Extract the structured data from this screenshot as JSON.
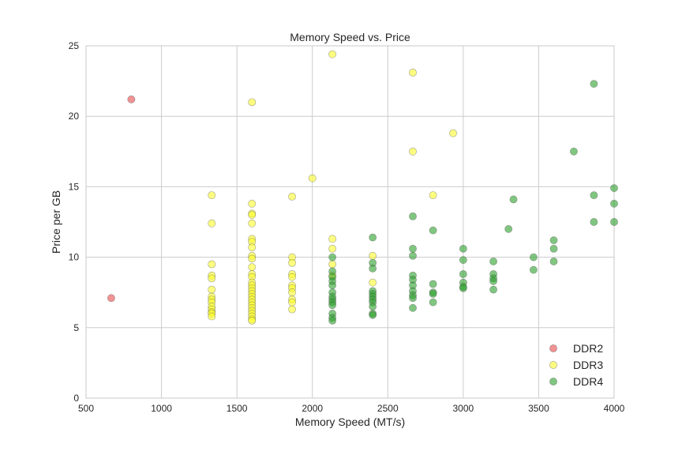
{
  "chart_data": {
    "type": "scatter",
    "title": "Memory Speed vs. Price",
    "xlabel": "Memory Speed (MT/s)",
    "ylabel": "Price per GB",
    "xlim": [
      500,
      4000
    ],
    "ylim": [
      0,
      25
    ],
    "xticks": [
      500,
      1000,
      1500,
      2000,
      2500,
      3000,
      3500,
      4000
    ],
    "yticks": [
      0,
      5,
      10,
      15,
      20,
      25
    ],
    "grid": true,
    "legend_position": "bottom-right",
    "series": [
      {
        "name": "DDR2",
        "color": "#e8494b",
        "points": [
          [
            667,
            7.1
          ],
          [
            800,
            21.2
          ]
        ]
      },
      {
        "name": "DDR3",
        "color": "#fcfc2c",
        "points": [
          [
            1333,
            14.4
          ],
          [
            1333,
            12.4
          ],
          [
            1333,
            9.5
          ],
          [
            1333,
            8.7
          ],
          [
            1333,
            8.5
          ],
          [
            1333,
            7.7
          ],
          [
            1333,
            7.2
          ],
          [
            1333,
            7.0
          ],
          [
            1333,
            6.8
          ],
          [
            1333,
            6.5
          ],
          [
            1333,
            6.3
          ],
          [
            1333,
            6.1
          ],
          [
            1333,
            6.0
          ],
          [
            1333,
            5.8
          ],
          [
            1600,
            21.0
          ],
          [
            1600,
            13.8
          ],
          [
            1600,
            13.1
          ],
          [
            1600,
            13.0
          ],
          [
            1600,
            12.4
          ],
          [
            1600,
            11.3
          ],
          [
            1600,
            11.1
          ],
          [
            1600,
            10.7
          ],
          [
            1600,
            10.1
          ],
          [
            1600,
            9.9
          ],
          [
            1600,
            9.3
          ],
          [
            1600,
            8.8
          ],
          [
            1600,
            8.6
          ],
          [
            1600,
            8.2
          ],
          [
            1600,
            8.0
          ],
          [
            1600,
            7.8
          ],
          [
            1600,
            7.6
          ],
          [
            1600,
            7.4
          ],
          [
            1600,
            7.2
          ],
          [
            1600,
            7.0
          ],
          [
            1600,
            6.8
          ],
          [
            1600,
            6.6
          ],
          [
            1600,
            6.4
          ],
          [
            1600,
            6.2
          ],
          [
            1600,
            6.0
          ],
          [
            1600,
            5.8
          ],
          [
            1600,
            5.6
          ],
          [
            1600,
            5.5
          ],
          [
            1866,
            14.3
          ],
          [
            1866,
            10.0
          ],
          [
            1866,
            9.6
          ],
          [
            1866,
            8.8
          ],
          [
            1866,
            8.6
          ],
          [
            1866,
            8.0
          ],
          [
            1866,
            7.8
          ],
          [
            1866,
            7.5
          ],
          [
            1866,
            7.0
          ],
          [
            1866,
            6.8
          ],
          [
            1866,
            6.3
          ],
          [
            2000,
            15.6
          ],
          [
            2133,
            24.4
          ],
          [
            2133,
            11.3
          ],
          [
            2133,
            10.6
          ],
          [
            2133,
            9.5
          ],
          [
            2133,
            8.7
          ],
          [
            2400,
            10.1
          ],
          [
            2400,
            8.2
          ],
          [
            2666,
            23.1
          ],
          [
            2666,
            17.5
          ],
          [
            2800,
            14.4
          ],
          [
            2933,
            18.8
          ]
        ]
      },
      {
        "name": "DDR4",
        "color": "#2ca02c",
        "points": [
          [
            2133,
            10.0
          ],
          [
            2133,
            9.0
          ],
          [
            2133,
            8.6
          ],
          [
            2133,
            8.3
          ],
          [
            2133,
            8.0
          ],
          [
            2133,
            7.5
          ],
          [
            2133,
            7.2
          ],
          [
            2133,
            7.0
          ],
          [
            2133,
            6.8
          ],
          [
            2133,
            6.6
          ],
          [
            2133,
            6.0
          ],
          [
            2133,
            5.7
          ],
          [
            2133,
            5.5
          ],
          [
            2400,
            11.4
          ],
          [
            2400,
            9.6
          ],
          [
            2400,
            9.2
          ],
          [
            2400,
            7.6
          ],
          [
            2400,
            7.4
          ],
          [
            2400,
            7.2
          ],
          [
            2400,
            7.0
          ],
          [
            2400,
            6.8
          ],
          [
            2400,
            6.5
          ],
          [
            2400,
            6.0
          ],
          [
            2400,
            5.9
          ],
          [
            2666,
            12.9
          ],
          [
            2666,
            10.6
          ],
          [
            2666,
            10.1
          ],
          [
            2666,
            8.7
          ],
          [
            2666,
            8.4
          ],
          [
            2666,
            8.0
          ],
          [
            2666,
            7.6
          ],
          [
            2666,
            7.3
          ],
          [
            2666,
            7.1
          ],
          [
            2666,
            6.4
          ],
          [
            2800,
            11.9
          ],
          [
            2800,
            8.1
          ],
          [
            2800,
            7.5
          ],
          [
            2800,
            7.4
          ],
          [
            2800,
            6.8
          ],
          [
            3000,
            10.6
          ],
          [
            3000,
            9.8
          ],
          [
            3000,
            8.8
          ],
          [
            3000,
            8.2
          ],
          [
            3000,
            7.9
          ],
          [
            3000,
            7.8
          ],
          [
            3200,
            9.7
          ],
          [
            3200,
            8.8
          ],
          [
            3200,
            8.5
          ],
          [
            3200,
            8.3
          ],
          [
            3200,
            7.7
          ],
          [
            3300,
            12.0
          ],
          [
            3333,
            14.1
          ],
          [
            3466,
            10.0
          ],
          [
            3466,
            9.1
          ],
          [
            3600,
            11.2
          ],
          [
            3600,
            10.6
          ],
          [
            3600,
            9.7
          ],
          [
            3733,
            17.5
          ],
          [
            3866,
            22.3
          ],
          [
            3866,
            14.4
          ],
          [
            3866,
            12.5
          ],
          [
            4000,
            14.9
          ],
          [
            4000,
            13.8
          ],
          [
            4000,
            12.5
          ]
        ]
      }
    ]
  }
}
